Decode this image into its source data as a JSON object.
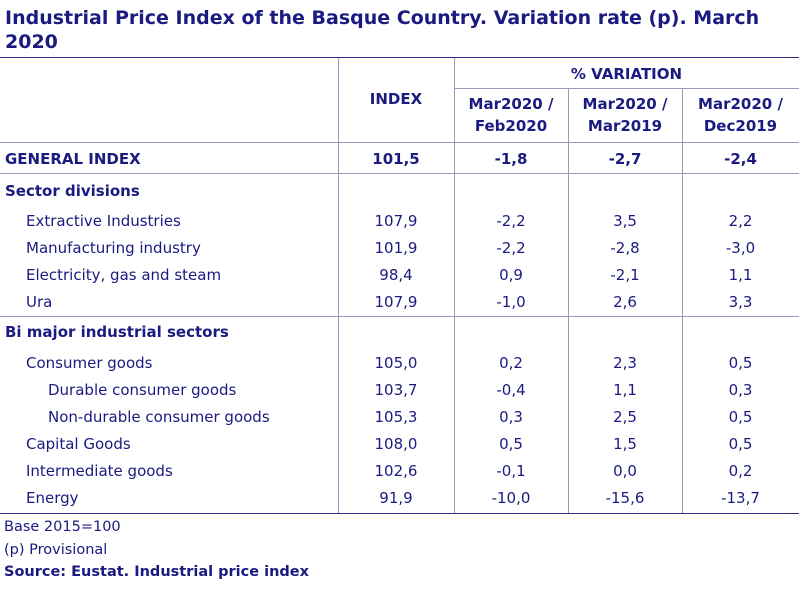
{
  "title": "Industrial Price Index of the Basque Country. Variation rate (p). March 2020",
  "header": {
    "index": "INDEX",
    "variation": "% VARIATION",
    "col1": [
      "Mar2020 /",
      "Feb2020"
    ],
    "col2": [
      "Mar2020 /",
      "Mar2019"
    ],
    "col3": [
      "Mar2020 /",
      "Dec2019"
    ]
  },
  "general": {
    "label": "GENERAL INDEX",
    "index": "101,5",
    "v1": "-1,8",
    "v2": "-2,7",
    "v3": "-2,4"
  },
  "sector_title": "Sector divisions",
  "sectors": [
    {
      "label": "Extractive Industries",
      "index": "107,9",
      "v1": "-2,2",
      "v2": "3,5",
      "v3": "2,2"
    },
    {
      "label": "Manufacturing industry",
      "index": "101,9",
      "v1": "-2,2",
      "v2": "-2,8",
      "v3": "-3,0"
    },
    {
      "label": "Electricity, gas and steam",
      "index": "98,4",
      "v1": "0,9",
      "v2": "-2,1",
      "v3": "1,1"
    },
    {
      "label": "Ura",
      "index": "107,9",
      "v1": "-1,0",
      "v2": "2,6",
      "v3": "3,3"
    }
  ],
  "major_title": "Bi major industrial sectors",
  "major": [
    {
      "label": "Consumer goods",
      "index": "105,0",
      "v1": "0,2",
      "v2": "2,3",
      "v3": "0,5",
      "indent": 1
    },
    {
      "label": "Durable consumer goods",
      "index": "103,7",
      "v1": "-0,4",
      "v2": "1,1",
      "v3": "0,3",
      "indent": 2
    },
    {
      "label": "Non-durable consumer goods",
      "index": "105,3",
      "v1": "0,3",
      "v2": "2,5",
      "v3": "0,5",
      "indent": 2
    },
    {
      "label": "Capital Goods",
      "index": "108,0",
      "v1": "0,5",
      "v2": "1,5",
      "v3": "0,5",
      "indent": 1
    },
    {
      "label": "Intermediate goods",
      "index": "102,6",
      "v1": "-0,1",
      "v2": "0,0",
      "v3": "0,2",
      "indent": 1
    },
    {
      "label": "Energy",
      "index": "91,9",
      "v1": "-10,0",
      "v2": "-15,6",
      "v3": "-13,7",
      "indent": 1
    }
  ],
  "footer": {
    "base": "Base 2015=100",
    "provisional": "(p) Provisional",
    "source": "Source: Eustat. Industrial price index"
  },
  "colors": {
    "text": "#1a1a80",
    "rule": "#9a9ac0"
  }
}
